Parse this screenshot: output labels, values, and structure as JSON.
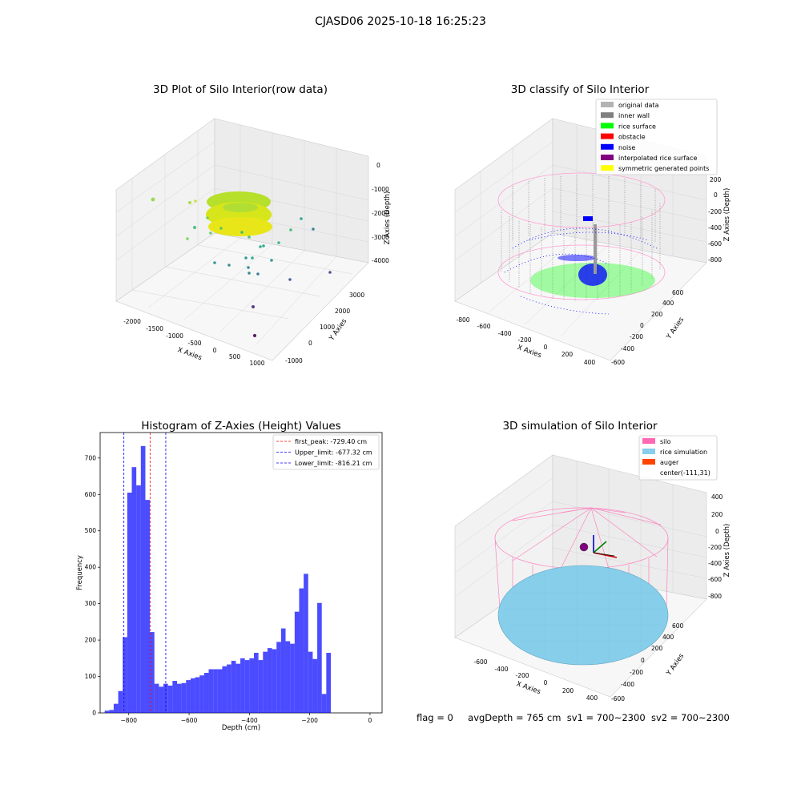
{
  "suptitle": "CJASD06 2025-10-18 16:25:23",
  "chart_data": [
    {
      "type": "scatter",
      "projection": "3d",
      "title": "3D Plot of Silo Interior(row data)",
      "xlabel": "X Axies",
      "ylabel": "Y Axies",
      "zlabel": "Z Axies (Depth)",
      "x_ticks": [
        "-2000",
        "-1500",
        "-1000",
        "-500",
        "0",
        "500",
        "1000"
      ],
      "y_ticks": [
        "-1000",
        "0",
        "1000",
        "2000",
        "3000"
      ],
      "z_ticks": [
        "0",
        "-1000",
        "-2000",
        "-3000",
        "-4000"
      ],
      "colormap": "viridis",
      "grid": true
    },
    {
      "type": "scatter",
      "projection": "3d",
      "title": "3D classify of Silo Interior",
      "xlabel": "X Axies",
      "ylabel": "Y Axies",
      "zlabel": "Z Axies (Depth)",
      "x_ticks": [
        "-800",
        "-600",
        "-400",
        "-200",
        "0",
        "200",
        "400"
      ],
      "y_ticks": [
        "600",
        "400",
        "200",
        "0",
        "-200",
        "-400",
        "-600"
      ],
      "z_ticks": [
        "200",
        "0",
        "-200",
        "-400",
        "-600",
        "-800"
      ],
      "legend_position": "top-right",
      "legend": [
        {
          "label": "original data",
          "color": "#b3b3b3"
        },
        {
          "label": "inner wall",
          "color": "#808080"
        },
        {
          "label": "rice surface",
          "color": "#00ff00"
        },
        {
          "label": "obstacle",
          "color": "#ff0000"
        },
        {
          "label": "noise",
          "color": "#0000ff"
        },
        {
          "label": "interpolated rice surface",
          "color": "#800080"
        },
        {
          "label": "symmetric generated points",
          "color": "#ffff00"
        }
      ],
      "grid": true
    },
    {
      "type": "bar",
      "title": "Histogram of Z-Axies (Height) Values",
      "xlabel": "Depth (cm)",
      "ylabel": "Frequency",
      "xlim": [
        -895,
        40
      ],
      "ylim": [
        0,
        770
      ],
      "x_ticks": [
        -800,
        -600,
        -400,
        -200,
        0
      ],
      "y_ticks": [
        0,
        100,
        200,
        300,
        400,
        500,
        600,
        700
      ],
      "bin_start": -880,
      "bin_width": 15,
      "values": [
        6,
        8,
        25,
        60,
        208,
        605,
        675,
        625,
        733,
        585,
        222,
        80,
        72,
        80,
        75,
        88,
        80,
        82,
        90,
        95,
        98,
        103,
        110,
        120,
        120,
        120,
        128,
        133,
        143,
        135,
        150,
        145,
        150,
        165,
        145,
        168,
        178,
        175,
        195,
        232,
        197,
        190,
        278,
        342,
        382,
        168,
        148,
        302,
        52,
        165
      ],
      "color": "#0000ff",
      "vlines": [
        {
          "x": -729.4,
          "label": "first_peak: -729.40 cm",
          "color": "#ff0000"
        },
        {
          "x": -677.32,
          "label": "Upper_limit: -677.32 cm",
          "color": "#0000ff"
        },
        {
          "x": -816.21,
          "label": "Lower_limit: -816.21 cm",
          "color": "#0000ff"
        }
      ],
      "legend_position": "top-right"
    },
    {
      "type": "scatter",
      "projection": "3d",
      "title": "3D simulation of Silo Interior",
      "xlabel": "X Axies",
      "ylabel": "Y Axies",
      "zlabel": "Z Axies (Depth)",
      "x_ticks": [
        "-600",
        "-400",
        "-200",
        "0",
        "200",
        "400"
      ],
      "y_ticks": [
        "600",
        "400",
        "200",
        "0",
        "-200",
        "-400",
        "-600"
      ],
      "z_ticks": [
        "400",
        "200",
        "0",
        "-200",
        "-400",
        "-600",
        "-800"
      ],
      "legend_position": "top-right",
      "legend": [
        {
          "label": "silo",
          "color": "#ff69b4"
        },
        {
          "label": "rice simulation",
          "color": "#87ceeb"
        },
        {
          "label": "auger",
          "color": "#ff4500"
        },
        {
          "label": "center(-111,31)",
          "color": ""
        }
      ],
      "grid": true
    }
  ],
  "footer": {
    "flag": "flag = 0",
    "avg_depth": "avgDepth = 765 cm",
    "sv1": "sv1 = 700~2300",
    "sv2": "sv2 = 700~2300"
  }
}
